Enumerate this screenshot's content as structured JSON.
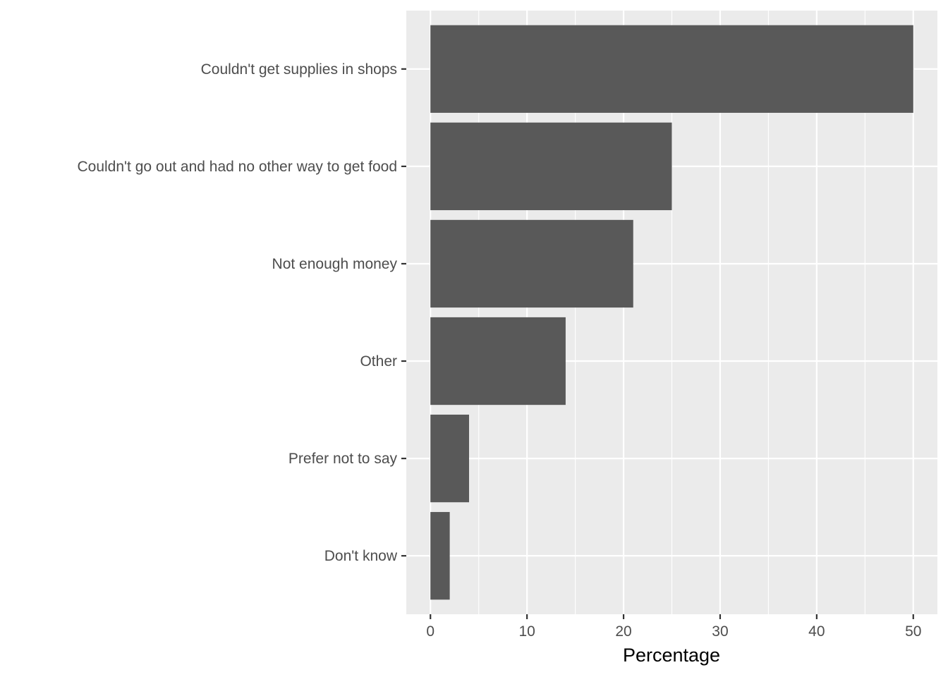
{
  "chart_data": {
    "type": "bar",
    "orientation": "horizontal",
    "categories": [
      "Couldn't get supplies in shops",
      "Couldn't go out and had no other way to get food",
      "Not enough money",
      "Other",
      "Prefer not to say",
      "Don't know"
    ],
    "values": [
      50,
      25,
      21,
      14,
      4,
      2
    ],
    "title": "",
    "xlabel": "Percentage",
    "ylabel": "",
    "xlim": [
      -2.5,
      52.5
    ],
    "x_ticks": [
      0,
      10,
      20,
      30,
      40,
      50
    ],
    "x_tick_labels": [
      "0",
      "10",
      "20",
      "30",
      "40",
      "50"
    ],
    "x_minor_ticks": [
      5,
      15,
      25,
      35,
      45
    ],
    "grid": true,
    "legend": "none",
    "bar_color": "#595959",
    "panel_color": "#EBEBEB",
    "grid_color": "#FFFFFF"
  }
}
